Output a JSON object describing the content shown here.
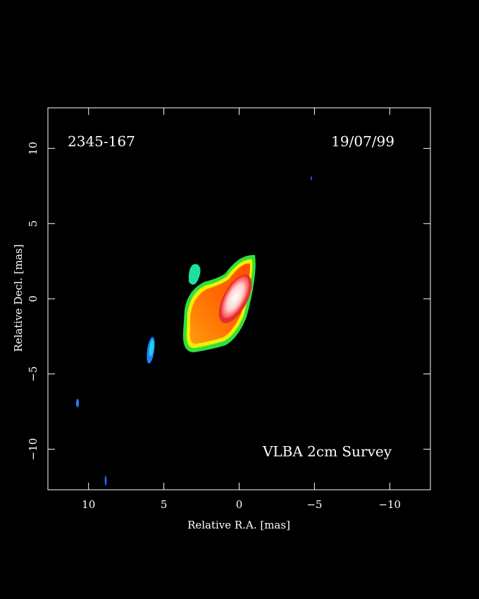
{
  "chart_data": {
    "type": "image",
    "source": "2345-167",
    "date": "19/07/99",
    "survey": "VLBA 2cm Survey",
    "xlabel": "Relative R.A. [mas]",
    "ylabel": "Relative Decl. [mas]",
    "xlim": [
      12.7,
      -12.7
    ],
    "ylim": [
      -12.7,
      12.7
    ],
    "xticks": [
      10,
      5,
      0,
      {
        "value": -5,
        "label": "−5"
      },
      {
        "value": -10,
        "label": "−10"
      }
    ],
    "yticks": [
      {
        "value": -10,
        "label": "−10"
      },
      {
        "value": -5,
        "label": "−5"
      },
      0,
      5,
      10
    ]
  }
}
